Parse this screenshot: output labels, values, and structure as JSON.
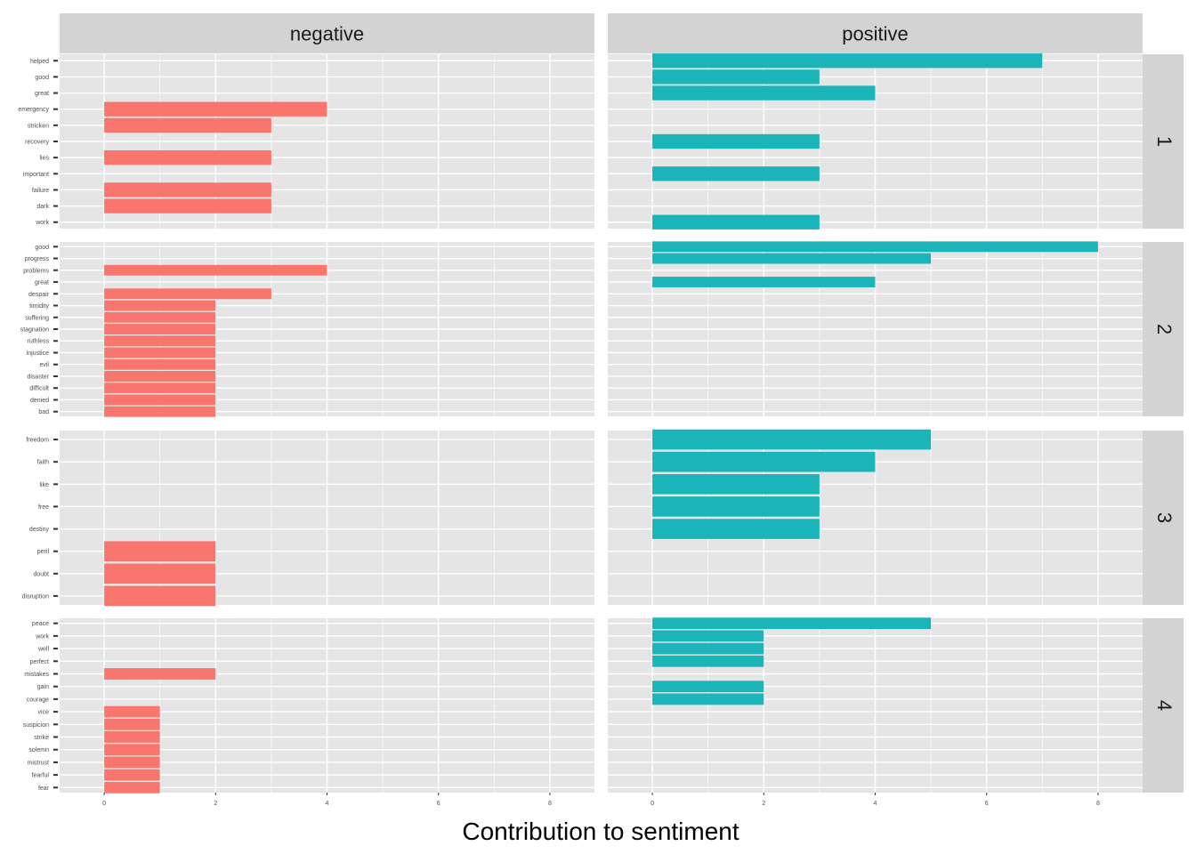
{
  "chart_data": {
    "type": "bar",
    "orientation": "horizontal",
    "xlabel": "Contribution to sentiment",
    "columns": [
      "negative",
      "positive"
    ],
    "rows": [
      "1",
      "2",
      "3",
      "4"
    ],
    "x_ticks": [
      0,
      2,
      4,
      6,
      8
    ],
    "xlim": [
      -0.8,
      8.8
    ],
    "colors": {
      "negative": "#F8766D",
      "positive": "#1BB5B9",
      "panel": "#E5E5E5",
      "strip": "#D3D3D3",
      "grid": "#FFFFFF"
    },
    "grid": true,
    "panels": [
      {
        "row": "1",
        "words": [
          "helped",
          "good",
          "great",
          "emergency",
          "stricken",
          "recovery",
          "lies",
          "important",
          "failure",
          "dark",
          "work"
        ],
        "negative": [
          0,
          0,
          0,
          4,
          3,
          0,
          3,
          0,
          3,
          3,
          0
        ],
        "positive": [
          7,
          3,
          4,
          0,
          0,
          3,
          0,
          3,
          0,
          0,
          3
        ]
      },
      {
        "row": "2",
        "words": [
          "good",
          "progress",
          "problems",
          "great",
          "despair",
          "timidity",
          "suffering",
          "stagnation",
          "ruthless",
          "injustice",
          "evil",
          "disaster",
          "difficult",
          "denied",
          "bad"
        ],
        "negative": [
          0,
          0,
          4,
          0,
          3,
          2,
          2,
          2,
          2,
          2,
          2,
          2,
          2,
          2,
          2
        ],
        "positive": [
          8,
          5,
          0,
          4,
          0,
          0,
          0,
          0,
          0,
          0,
          0,
          0,
          0,
          0,
          0
        ]
      },
      {
        "row": "3",
        "words": [
          "freedom",
          "faith",
          "like",
          "free",
          "destiny",
          "peril",
          "doubt",
          "disruption"
        ],
        "negative": [
          0,
          0,
          0,
          0,
          0,
          2,
          2,
          2
        ],
        "positive": [
          5,
          4,
          3,
          3,
          3,
          0,
          0,
          0
        ]
      },
      {
        "row": "4",
        "words": [
          "peace",
          "work",
          "well",
          "perfect",
          "mistakes",
          "gain",
          "courage",
          "vice",
          "suspicion",
          "strike",
          "solemn",
          "mistrust",
          "fearful",
          "fear"
        ],
        "negative": [
          0,
          0,
          0,
          0,
          2,
          0,
          0,
          1,
          1,
          1,
          1,
          1,
          1,
          1
        ],
        "positive": [
          5,
          2,
          2,
          2,
          0,
          2,
          2,
          0,
          0,
          0,
          0,
          0,
          0,
          0
        ]
      }
    ]
  }
}
